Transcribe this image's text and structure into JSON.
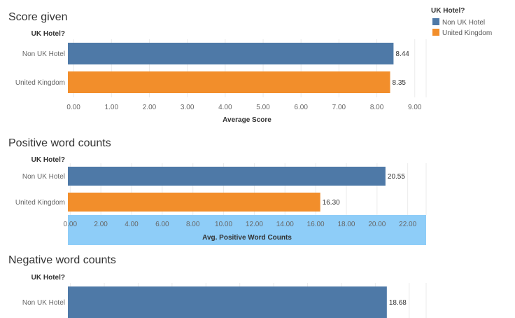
{
  "legend": {
    "title": "UK Hotel?",
    "items": [
      {
        "label": "Non UK Hotel",
        "color": "#4e79a7"
      },
      {
        "label": "United Kingdom",
        "color": "#f28e2b"
      }
    ]
  },
  "chart_data": [
    {
      "type": "bar",
      "orientation": "horizontal",
      "title": "Score given",
      "row_header": "UK Hotel?",
      "categories": [
        "Non UK Hotel",
        "United Kingdom"
      ],
      "values": [
        8.44,
        8.35
      ],
      "value_labels": [
        "8.44",
        "8.35"
      ],
      "colors": [
        "#4e79a7",
        "#f28e2b"
      ],
      "xlabel": "Average Score",
      "xlim": [
        -0.15,
        9.3
      ],
      "xticks": [
        0,
        1,
        2,
        3,
        4,
        5,
        6,
        7,
        8,
        9
      ],
      "xtick_labels": [
        "0.00",
        "1.00",
        "2.00",
        "3.00",
        "4.00",
        "5.00",
        "6.00",
        "7.00",
        "8.00",
        "9.00"
      ],
      "axis_highlight": null,
      "grid": true
    },
    {
      "type": "bar",
      "orientation": "horizontal",
      "title": "Positive word counts",
      "row_header": "UK Hotel?",
      "categories": [
        "Non UK Hotel",
        "United Kingdom"
      ],
      "values": [
        20.55,
        16.3
      ],
      "value_labels": [
        "20.55",
        "16.30"
      ],
      "colors": [
        "#4e79a7",
        "#f28e2b"
      ],
      "xlabel": "Avg. Positive Word Counts",
      "xlim": [
        -0.15,
        23.2
      ],
      "xticks": [
        0,
        2,
        4,
        6,
        8,
        10,
        12,
        14,
        16,
        18,
        20,
        22
      ],
      "xtick_labels": [
        "0.00",
        "2.00",
        "4.00",
        "6.00",
        "8.00",
        "10.00",
        "12.00",
        "14.00",
        "16.00",
        "18.00",
        "20.00",
        "22.00"
      ],
      "axis_highlight": "#8ecdf8",
      "grid": true
    },
    {
      "type": "bar",
      "orientation": "horizontal",
      "title": "Negative word counts",
      "row_header": "UK Hotel?",
      "categories": [
        "Non UK Hotel"
      ],
      "values": [
        18.68
      ],
      "value_labels": [
        "18.68"
      ],
      "colors": [
        "#4e79a7"
      ],
      "xlabel": "",
      "xlim": [
        -0.15,
        21.0
      ],
      "xticks": [],
      "xtick_labels": [],
      "axis_highlight": null,
      "grid": true
    }
  ]
}
